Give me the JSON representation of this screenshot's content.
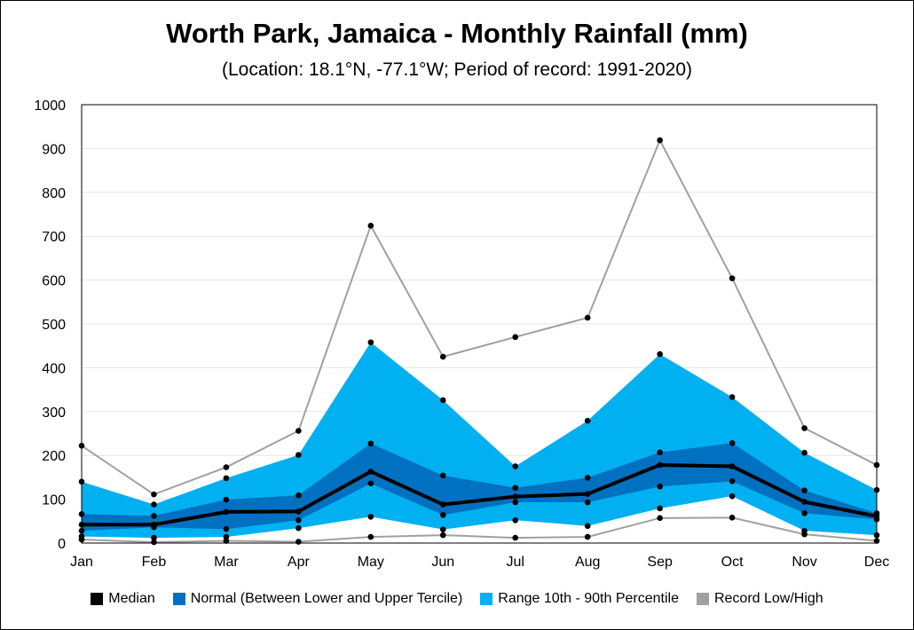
{
  "chart_data": {
    "type": "area",
    "title": "Worth Park, Jamaica - Monthly Rainfall (mm)",
    "subtitle": "(Location: 18.1°N, -77.1°W; Period of record: 1991-2020)",
    "categories": [
      "Jan",
      "Feb",
      "Mar",
      "Apr",
      "May",
      "Jun",
      "Jul",
      "Aug",
      "Sep",
      "Oct",
      "Nov",
      "Dec"
    ],
    "ylim": [
      0,
      1000
    ],
    "yticks": [
      0,
      100,
      200,
      300,
      400,
      500,
      600,
      700,
      800,
      900,
      1000
    ],
    "grid": true,
    "legend_position": "bottom",
    "series": [
      {
        "name": "Record Low/High",
        "color": "#a0a0a0",
        "low": [
          8,
          2,
          5,
          3,
          14,
          18,
          12,
          14,
          57,
          58,
          20,
          5
        ],
        "high": [
          222,
          111,
          173,
          256,
          724,
          425,
          470,
          514,
          919,
          604,
          262,
          178
        ]
      },
      {
        "name": "Range 10th - 90th Percentile",
        "color": "#00b0f0",
        "low": [
          15,
          12,
          14,
          34,
          60,
          31,
          52,
          39,
          79,
          107,
          28,
          18
        ],
        "high": [
          140,
          88,
          148,
          201,
          458,
          326,
          175,
          279,
          431,
          333,
          206,
          121
        ]
      },
      {
        "name": "Normal (Between Lower and Upper Tercile)",
        "color": "#0070c0",
        "low": [
          28,
          36,
          32,
          52,
          136,
          64,
          93,
          93,
          129,
          141,
          68,
          54
        ],
        "high": [
          66,
          62,
          99,
          109,
          227,
          154,
          126,
          149,
          207,
          228,
          120,
          68
        ]
      },
      {
        "name": "Median",
        "color": "#000000",
        "values": [
          42,
          42,
          71,
          72,
          163,
          88,
          106,
          112,
          178,
          175,
          94,
          61
        ]
      }
    ]
  }
}
